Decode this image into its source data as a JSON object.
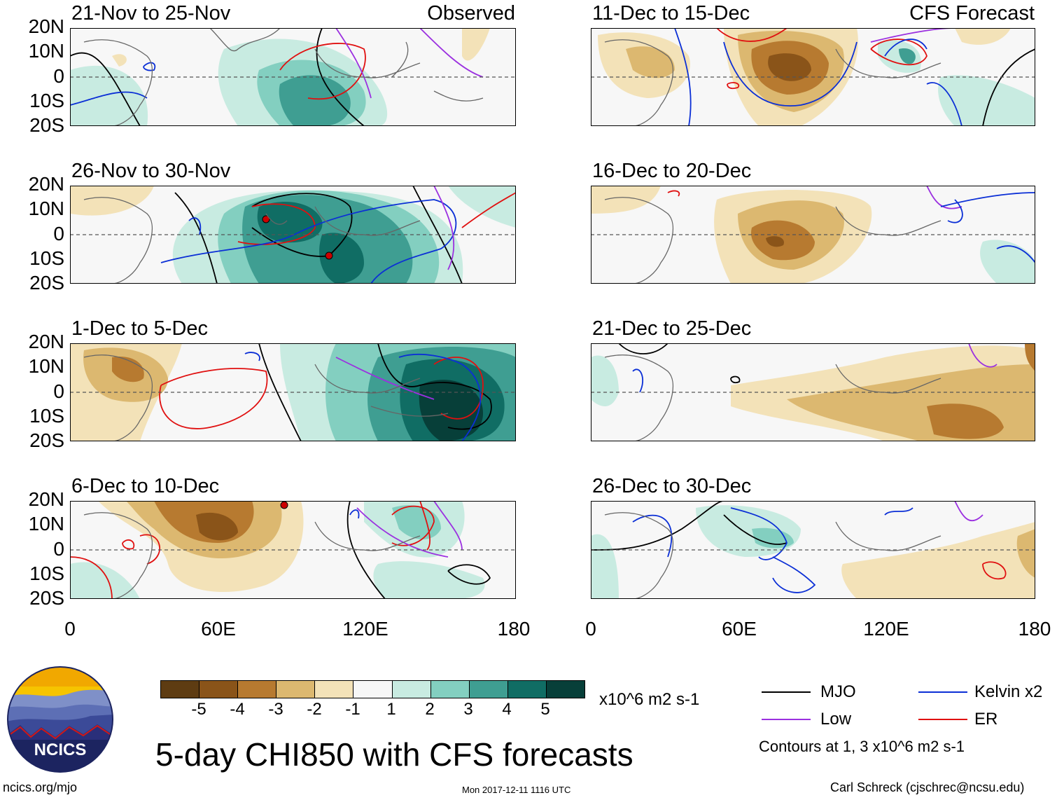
{
  "headers": {
    "left": "Observed",
    "right": "CFS Forecast"
  },
  "panels_left": [
    {
      "label": "21-Nov to 25-Nov"
    },
    {
      "label": "26-Nov to 30-Nov"
    },
    {
      "label": "1-Dec to 5-Dec"
    },
    {
      "label": "6-Dec to 10-Dec"
    }
  ],
  "panels_right": [
    {
      "label": "11-Dec to 15-Dec"
    },
    {
      "label": "16-Dec to 20-Dec"
    },
    {
      "label": "21-Dec to 25-Dec"
    },
    {
      "label": "26-Dec to 30-Dec"
    }
  ],
  "lat_ticks": [
    "20N",
    "10N",
    "0",
    "10S",
    "20S"
  ],
  "lon_ticks": [
    "0",
    "60E",
    "120E",
    "180"
  ],
  "colorbar": {
    "colors": [
      "#5e3c12",
      "#8a5419",
      "#b77a30",
      "#dcb870",
      "#f3e2b8",
      "#f7f7f7",
      "#c8ebe1",
      "#83cfc0",
      "#3f9e92",
      "#106d64",
      "#073f39"
    ],
    "ticks": [
      "-5",
      "-4",
      "-3",
      "-2",
      "-1",
      "1",
      "2",
      "3",
      "4",
      "5"
    ],
    "units": "x10^6 m2 s-1"
  },
  "legend": {
    "items": [
      {
        "name": "MJO",
        "color": "#000000"
      },
      {
        "name": "Kelvin x2",
        "color": "#0b2fd6"
      },
      {
        "name": "Low",
        "color": "#9b30e0"
      },
      {
        "name": "ER",
        "color": "#e01010"
      }
    ],
    "note": "Contours at 1, 3 x10^6 m2 s-1"
  },
  "title": "5-day CHI850 with CFS forecasts",
  "logo_text": "NCICS",
  "footer": {
    "left": "ncics.org/mjo",
    "center": "Mon 2017-12-11 1116 UTC",
    "right": "Carl Schreck (cjschrec@ncsu.edu)"
  }
}
